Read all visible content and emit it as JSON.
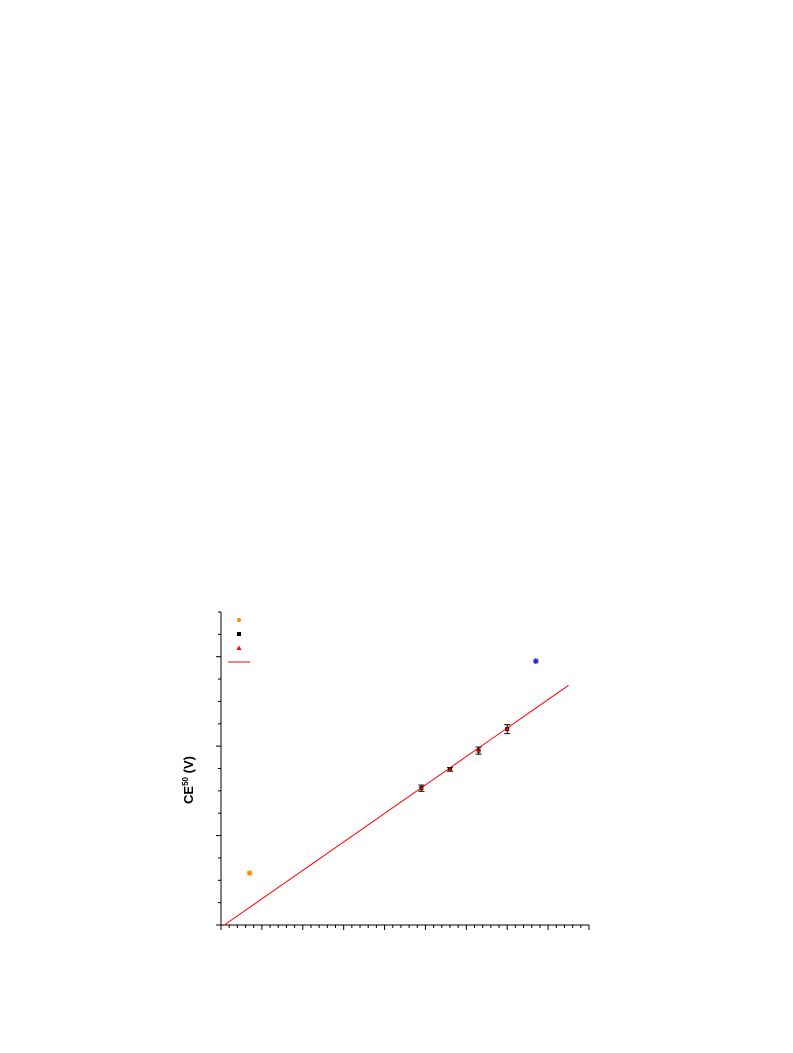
{
  "chart_data": {
    "type": "scatter",
    "ylabel_main": "CE",
    "ylabel_sup": "50",
    "ylabel_unit": " (V)",
    "xlim": [
      0,
      9
    ],
    "ylim": [
      0,
      35
    ],
    "x_minor_step": 0.2,
    "x_major_step": 1,
    "y_minor_step": 2.5,
    "y_major_step": 10,
    "grid": false,
    "legend_position": "top-left",
    "series": [
      {
        "marker": "star",
        "color": "#ff8c00",
        "points": [
          {
            "x": 0.7,
            "y": 5.8
          }
        ]
      },
      {
        "marker": "square",
        "color": "#000000",
        "errorbars": true,
        "points": [
          {
            "x": 4.9,
            "y": 15.3,
            "err": 0.35
          },
          {
            "x": 5.6,
            "y": 17.4,
            "err": 0.2
          },
          {
            "x": 6.3,
            "y": 19.5,
            "err": 0.4
          },
          {
            "x": 7.0,
            "y": 21.9,
            "err": 0.5
          }
        ]
      },
      {
        "marker": "triangle",
        "color": "#ff0000",
        "points": [
          {
            "x": 4.9,
            "y": 15.3
          },
          {
            "x": 5.6,
            "y": 17.4
          },
          {
            "x": 6.3,
            "y": 19.5
          },
          {
            "x": 7.0,
            "y": 21.9
          }
        ]
      },
      {
        "marker": "star",
        "color": "#2222cc",
        "points": [
          {
            "x": 7.7,
            "y": 29.5
          }
        ]
      }
    ],
    "fit_line": {
      "color": "#ff0000",
      "x": [
        0.05,
        8.5
      ],
      "y": [
        -0.1,
        26.8
      ]
    },
    "legend": [
      {
        "marker": "circle",
        "color": "#ff8c00"
      },
      {
        "marker": "square",
        "color": "#000000"
      },
      {
        "marker": "triangle",
        "color": "#ff0000"
      },
      {
        "marker": "line",
        "color": "#ff0000"
      }
    ]
  }
}
